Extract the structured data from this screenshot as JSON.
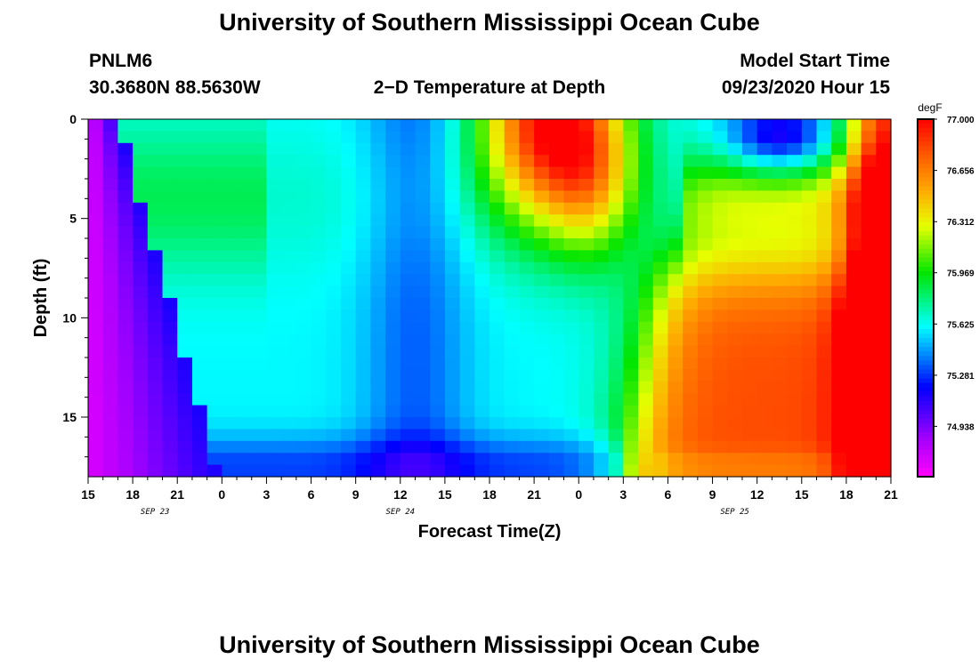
{
  "header": {
    "title": "University of Southern Mississippi Ocean Cube",
    "station": "PNLM6",
    "location": "30.3680N 88.5630W",
    "subtitle": "2−D Temperature at Depth",
    "model_start_label": "Model Start Time",
    "model_start_value": "09/23/2020 Hour 15"
  },
  "footer": {
    "title": "University of Southern Mississippi Ocean Cube"
  },
  "chart_data": {
    "type": "heatmap",
    "title": "2−D Temperature at Depth",
    "xlabel": "Forecast Time(Z)",
    "ylabel": "Depth (ft)",
    "x_ticks": [
      "15",
      "18",
      "21",
      "0",
      "3",
      "6",
      "9",
      "12",
      "15",
      "18",
      "21",
      "0",
      "3",
      "6",
      "9",
      "12",
      "15",
      "18",
      "21"
    ],
    "date_labels": [
      {
        "label": "SEP 23",
        "tick_index": 1.5
      },
      {
        "label": "SEP 24",
        "tick_index": 7
      },
      {
        "label": "SEP 25",
        "tick_index": 14.5
      }
    ],
    "x_range_hours": [
      0,
      54
    ],
    "y_range_ft": [
      0,
      18
    ],
    "y_ticks": [
      0,
      5,
      10,
      15
    ],
    "colorbar": {
      "unit": "degF",
      "min": 74.6,
      "max": 77.0,
      "tick_labels": [
        "77.000",
        "76.656",
        "76.312",
        "75.969",
        "75.625",
        "75.281",
        "74.938"
      ],
      "tick_values": [
        77.0,
        76.656,
        76.312,
        75.969,
        75.625,
        75.281,
        74.938
      ]
    },
    "grid": false,
    "notes_on_field": "Temperature (degF) sampled every ~1 h over 54 h, depths 0–18 ft.",
    "field_model": {
      "cold_wedge": "coldest (~74.7) near 15Z Sep 23, deepening front toward 21Z",
      "cool_band": "~75.3–75.5 around 12Z–15Z Sep 24",
      "warm_surface_pulse": "~76.9–77.0 at surface near 21Z Sep 24",
      "cold_surface_pocket": "~75.3 near surface 12Z–15Z Sep 25",
      "warm_column": "~76.7–77.0 from 6Z Sep 25 to 21Z Sep 25 below 7 ft"
    }
  }
}
